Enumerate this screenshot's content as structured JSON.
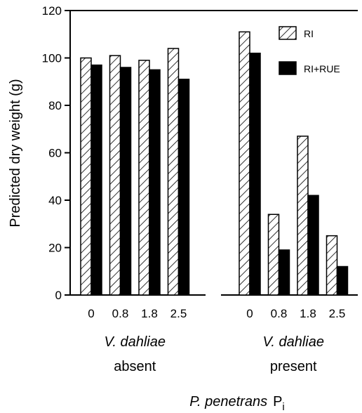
{
  "chart_data": {
    "type": "bar",
    "title": "",
    "ylabel": "Predicted dry weight (g)",
    "ylim": [
      0,
      120
    ],
    "yticks": [
      "0",
      "20",
      "40",
      "60",
      "80",
      "100",
      "120"
    ],
    "grid": false,
    "legend_position": "top-right",
    "xlabel_main": "P. penetrans",
    "xlabel_suffix": "P",
    "xlabel_subscript": "i",
    "groups": [
      {
        "label_line1": "V. dahliae",
        "label_line2": "absent",
        "categories": [
          "0",
          "0.8",
          "1.8",
          "2.5"
        ]
      },
      {
        "label_line1": "V. dahliae",
        "label_line2": "present",
        "categories": [
          "0",
          "0.8",
          "1.8",
          "2.5"
        ]
      }
    ],
    "series": [
      {
        "name": "RI",
        "pattern": "hatched",
        "values": [
          [
            100,
            101,
            99,
            104
          ],
          [
            111,
            34,
            67,
            25
          ]
        ]
      },
      {
        "name": "RI+RUE",
        "pattern": "solid",
        "color": "#000000",
        "values": [
          [
            97,
            96,
            95,
            91
          ],
          [
            102,
            19,
            42,
            12
          ]
        ]
      }
    ]
  }
}
